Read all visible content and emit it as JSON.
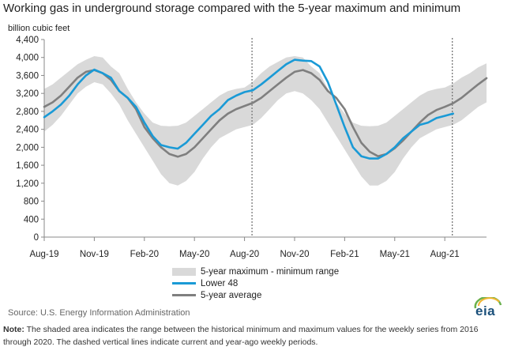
{
  "title": "Working gas in underground  storage compared with the 5-year maximum and minimum",
  "ylabel": "billion cubic feet",
  "legend": {
    "band": "5-year maximum - minimum range",
    "lower48": "Lower 48",
    "avg": "5-year average"
  },
  "source": "Source:  U.S. Energy Information Administration",
  "note_label": "Note:",
  "note_text": " The shaded area indicates the range between the historical minimum and maximum values for the weekly series from 2016 through 2020. The dashed vertical lines indicate current and year-ago weekly periods.",
  "logo": "eia",
  "colors": {
    "band": "#d9d9d9",
    "lower48": "#1a9ad6",
    "avg": "#7f7f7f",
    "axis": "#888888"
  },
  "chart_data": {
    "type": "line",
    "ylim": [
      0,
      4400
    ],
    "yticks": [
      "0",
      "400",
      "800",
      "1,200",
      "1,600",
      "2,000",
      "2,400",
      "2,800",
      "3,200",
      "3,600",
      "4,000",
      "4,400"
    ],
    "ytick_values": [
      0,
      400,
      800,
      1200,
      1600,
      2000,
      2400,
      2800,
      3200,
      3600,
      4000,
      4400
    ],
    "xlim": [
      0,
      26.5
    ],
    "xticks": [
      "Aug-19",
      "Nov-19",
      "Feb-20",
      "May-20",
      "Aug-20",
      "Nov-20",
      "Feb-21",
      "May-21",
      "Aug-21"
    ],
    "xtick_values": [
      0,
      3,
      6,
      9,
      12,
      15,
      18,
      21,
      24
    ],
    "dashed_lines": [
      12.45,
      24.45
    ],
    "series": [
      {
        "name": "5-year maximum - minimum range",
        "kind": "band",
        "x": [
          0,
          0.5,
          1,
          1.5,
          2,
          2.5,
          3,
          3.5,
          4,
          4.5,
          5,
          5.5,
          6,
          6.5,
          7,
          7.5,
          8,
          8.5,
          9,
          9.5,
          10,
          10.5,
          11,
          11.5,
          12,
          12.5,
          13,
          13.5,
          14,
          14.5,
          15,
          15.5,
          16,
          16.5,
          17,
          17.5,
          18,
          18.5,
          19,
          19.5,
          20,
          20.5,
          21,
          21.5,
          22,
          22.5,
          23,
          23.5,
          24,
          24.5,
          25,
          25.5,
          26,
          26.5
        ],
        "max": [
          3300,
          3400,
          3550,
          3700,
          3850,
          3950,
          4030,
          4000,
          3800,
          3650,
          3300,
          3000,
          2750,
          2550,
          2480,
          2470,
          2480,
          2550,
          2700,
          2850,
          3000,
          3150,
          3250,
          3300,
          3330,
          3460,
          3650,
          3800,
          3900,
          4000,
          4030,
          4000,
          3800,
          3650,
          3300,
          3000,
          2750,
          2550,
          2480,
          2470,
          2480,
          2550,
          2700,
          2850,
          3000,
          3150,
          3250,
          3300,
          3330,
          3420,
          3550,
          3650,
          3780,
          3870
        ],
        "min": [
          2350,
          2500,
          2700,
          2950,
          3200,
          3350,
          3450,
          3400,
          3200,
          2950,
          2600,
          2300,
          2000,
          1700,
          1400,
          1200,
          1150,
          1250,
          1450,
          1750,
          2000,
          2200,
          2300,
          2400,
          2450,
          2500,
          2650,
          2850,
          3050,
          3200,
          3250,
          3200,
          3050,
          2850,
          2550,
          2250,
          1950,
          1650,
          1350,
          1150,
          1150,
          1250,
          1450,
          1750,
          2000,
          2200,
          2300,
          2400,
          2450,
          2500,
          2600,
          2750,
          2900,
          3000
        ]
      },
      {
        "name": "Lower 48",
        "x": [
          0,
          0.5,
          1,
          1.5,
          2,
          2.5,
          3,
          3.5,
          4,
          4.5,
          5,
          5.5,
          6,
          6.5,
          7,
          7.5,
          8,
          8.5,
          9,
          9.5,
          10,
          10.5,
          11,
          11.5,
          12,
          12.5,
          13,
          13.5,
          14,
          14.5,
          15,
          15.5,
          16,
          16.5,
          17,
          17.5,
          18,
          18.5,
          19,
          19.5,
          20,
          20.5,
          21,
          21.5,
          22,
          22.5,
          23,
          23.5,
          24,
          24.5
        ],
        "values": [
          2670,
          2800,
          2950,
          3150,
          3400,
          3600,
          3730,
          3650,
          3550,
          3250,
          3100,
          2900,
          2550,
          2250,
          2050,
          2000,
          1970,
          2100,
          2300,
          2500,
          2700,
          2850,
          3050,
          3150,
          3230,
          3270,
          3400,
          3550,
          3700,
          3850,
          3950,
          3930,
          3920,
          3800,
          3450,
          2950,
          2450,
          2000,
          1800,
          1750,
          1750,
          1850,
          2000,
          2200,
          2350,
          2500,
          2550,
          2650,
          2700,
          2750
        ]
      },
      {
        "name": "5-year average",
        "x": [
          0,
          0.5,
          1,
          1.5,
          2,
          2.5,
          3,
          3.5,
          4,
          4.5,
          5,
          5.5,
          6,
          6.5,
          7,
          7.5,
          8,
          8.5,
          9,
          9.5,
          10,
          10.5,
          11,
          11.5,
          12,
          12.5,
          13,
          13.5,
          14,
          14.5,
          15,
          15.5,
          16,
          16.5,
          17,
          17.5,
          18,
          18.5,
          19,
          19.5,
          20,
          20.5,
          21,
          21.5,
          22,
          22.5,
          23,
          23.5,
          24,
          24.5,
          25,
          25.5,
          26,
          26.5
        ],
        "values": [
          2900,
          3000,
          3150,
          3350,
          3550,
          3680,
          3720,
          3650,
          3500,
          3250,
          3100,
          2850,
          2450,
          2200,
          2000,
          1850,
          1790,
          1850,
          2000,
          2200,
          2400,
          2600,
          2750,
          2850,
          2920,
          2990,
          3100,
          3250,
          3400,
          3550,
          3680,
          3720,
          3650,
          3500,
          3250,
          3100,
          2850,
          2450,
          2100,
          1900,
          1800,
          1850,
          1980,
          2150,
          2350,
          2550,
          2720,
          2830,
          2900,
          2980,
          3100,
          3250,
          3400,
          3540
        ]
      }
    ]
  }
}
